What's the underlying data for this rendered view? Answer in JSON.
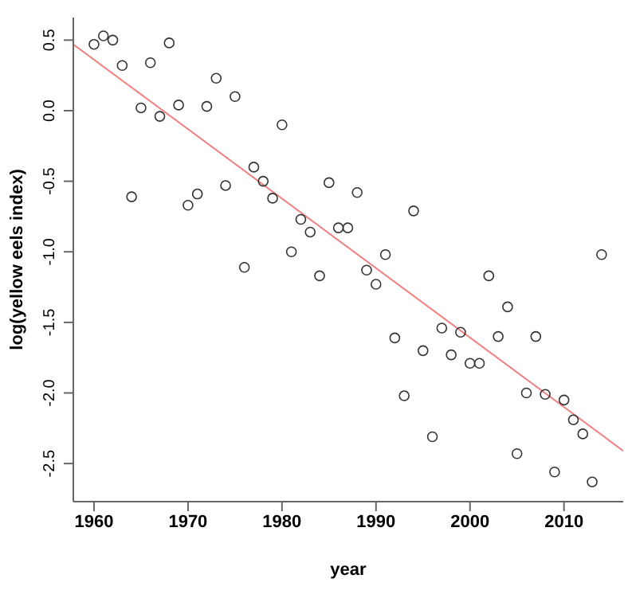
{
  "chart_data": {
    "type": "scatter",
    "xlabel": "year",
    "ylabel": "log(yellow eels index)",
    "xlim": [
      1957.8,
      2016.3
    ],
    "ylim": [
      -2.77,
      0.66
    ],
    "xticks": [
      1960,
      1970,
      1980,
      1990,
      2000,
      2010
    ],
    "yticks": [
      -2.5,
      {
        "value": -2,
        "label": "-2.0"
      },
      -1.5,
      {
        "value": -1,
        "label": "-1.0"
      },
      -0.5,
      {
        "value": 0,
        "label": "0.0"
      },
      0.5
    ],
    "series": [
      {
        "type": "scatter",
        "color": "#333333",
        "marker": "circle",
        "x": [
          1960,
          1961,
          1962,
          1963,
          1964,
          1965,
          1966,
          1967,
          1968,
          1969,
          1970,
          1971,
          1972,
          1973,
          1974,
          1975,
          1976,
          1977,
          1978,
          1979,
          1980,
          1981,
          1982,
          1983,
          1984,
          1985,
          1986,
          1987,
          1988,
          1989,
          1990,
          1991,
          1992,
          1993,
          1994,
          1995,
          1996,
          1997,
          1998,
          1999,
          2000,
          2001,
          2002,
          2003,
          2004,
          2005,
          2006,
          2007,
          2008,
          2009,
          2010,
          2011,
          2012,
          2013,
          2014
        ],
        "values": [
          0.47,
          0.53,
          0.5,
          0.32,
          -0.61,
          0.02,
          0.34,
          -0.04,
          0.48,
          0.04,
          -0.67,
          -0.59,
          0.03,
          0.23,
          -0.53,
          0.1,
          -1.11,
          -0.4,
          -0.5,
          -0.62,
          -0.1,
          -1.0,
          -0.77,
          -0.86,
          -1.17,
          -0.51,
          -0.83,
          -0.83,
          -0.58,
          -1.13,
          -1.23,
          -1.02,
          -1.61,
          -2.02,
          -0.71,
          -1.7,
          -2.31,
          -1.54,
          -1.73,
          -1.57,
          -1.79,
          -1.79,
          -1.17,
          -1.6,
          -1.39,
          -2.43,
          -2.0,
          -1.6,
          -2.01,
          -2.56,
          -2.05,
          -2.19,
          -2.29,
          -2.63,
          -1.02
        ]
      },
      {
        "type": "line",
        "color": "#f08080",
        "line_style": "solid",
        "x": [
          1957.8,
          2016.3
        ],
        "values": [
          0.47,
          -2.41
        ]
      }
    ]
  }
}
